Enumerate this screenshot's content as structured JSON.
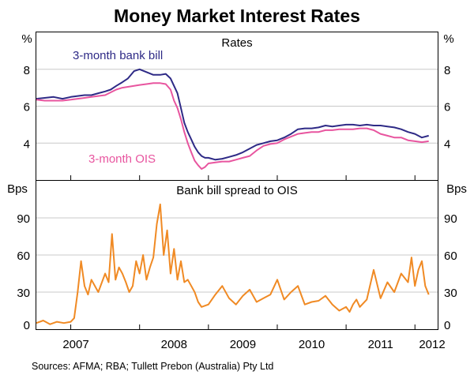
{
  "title": "Money Market Interest Rates",
  "source": "Sources: AFMA; RBA; Tullett Prebon (Australia) Pty Ltd",
  "chart_data": [
    {
      "type": "line",
      "panel_title": "Rates",
      "ylabel_left": "%",
      "ylabel_right": "%",
      "ylim": [
        2,
        10
      ],
      "yticks": [
        4,
        6,
        8
      ],
      "xlim": [
        2006.5,
        2012.33
      ],
      "xtick_labels": [
        "2007",
        "2008",
        "2009",
        "2010",
        "2011",
        "2012"
      ],
      "grid": true,
      "series": [
        {
          "name": "3-month bank bill",
          "color": "#2e2a86",
          "x": [
            2006.5,
            2006.62,
            2006.75,
            2006.88,
            2007.0,
            2007.1,
            2007.2,
            2007.3,
            2007.4,
            2007.5,
            2007.58,
            2007.66,
            2007.75,
            2007.83,
            2007.92,
            2008.0,
            2008.1,
            2008.2,
            2008.3,
            2008.38,
            2008.45,
            2008.5,
            2008.55,
            2008.6,
            2008.65,
            2008.7,
            2008.75,
            2008.8,
            2008.85,
            2008.9,
            2008.95,
            2009.0,
            2009.1,
            2009.2,
            2009.3,
            2009.4,
            2009.5,
            2009.6,
            2009.7,
            2009.8,
            2009.9,
            2010.0,
            2010.1,
            2010.2,
            2010.3,
            2010.4,
            2010.5,
            2010.6,
            2010.7,
            2010.8,
            2010.9,
            2011.0,
            2011.1,
            2011.2,
            2011.3,
            2011.4,
            2011.5,
            2011.6,
            2011.7,
            2011.8,
            2011.9,
            2012.0,
            2012.1,
            2012.2
          ],
          "values": [
            6.4,
            6.45,
            6.5,
            6.4,
            6.5,
            6.55,
            6.6,
            6.6,
            6.7,
            6.8,
            6.9,
            7.1,
            7.3,
            7.5,
            7.9,
            8.0,
            7.85,
            7.7,
            7.7,
            7.75,
            7.5,
            7.1,
            6.7,
            5.9,
            5.1,
            4.6,
            4.2,
            3.8,
            3.5,
            3.3,
            3.2,
            3.2,
            3.1,
            3.15,
            3.25,
            3.35,
            3.5,
            3.7,
            3.9,
            4.0,
            4.1,
            4.15,
            4.3,
            4.5,
            4.75,
            4.8,
            4.8,
            4.85,
            4.95,
            4.9,
            4.95,
            5.0,
            5.0,
            4.95,
            5.0,
            4.95,
            4.95,
            4.9,
            4.85,
            4.75,
            4.6,
            4.5,
            4.3,
            4.4
          ]
        },
        {
          "name": "3-month OIS",
          "color": "#e8559f",
          "x": [
            2006.5,
            2006.62,
            2006.75,
            2006.88,
            2007.0,
            2007.1,
            2007.2,
            2007.3,
            2007.4,
            2007.5,
            2007.58,
            2007.66,
            2007.75,
            2007.83,
            2007.92,
            2008.0,
            2008.1,
            2008.2,
            2008.3,
            2008.38,
            2008.45,
            2008.5,
            2008.55,
            2008.6,
            2008.65,
            2008.7,
            2008.75,
            2008.8,
            2008.85,
            2008.9,
            2008.95,
            2009.0,
            2009.1,
            2009.2,
            2009.3,
            2009.4,
            2009.5,
            2009.6,
            2009.7,
            2009.8,
            2009.9,
            2010.0,
            2010.1,
            2010.2,
            2010.3,
            2010.4,
            2010.5,
            2010.6,
            2010.7,
            2010.8,
            2010.9,
            2011.0,
            2011.1,
            2011.2,
            2011.3,
            2011.4,
            2011.5,
            2011.6,
            2011.7,
            2011.8,
            2011.9,
            2012.0,
            2012.1,
            2012.2
          ],
          "values": [
            6.35,
            6.3,
            6.3,
            6.3,
            6.35,
            6.4,
            6.45,
            6.5,
            6.55,
            6.6,
            6.75,
            6.9,
            7.0,
            7.05,
            7.1,
            7.15,
            7.2,
            7.25,
            7.25,
            7.2,
            6.9,
            6.3,
            5.9,
            5.3,
            4.6,
            4.0,
            3.5,
            3.05,
            2.8,
            2.6,
            2.7,
            2.9,
            2.95,
            3.0,
            3.0,
            3.1,
            3.2,
            3.3,
            3.6,
            3.85,
            3.95,
            4.0,
            4.2,
            4.35,
            4.5,
            4.55,
            4.6,
            4.6,
            4.7,
            4.7,
            4.75,
            4.75,
            4.75,
            4.8,
            4.8,
            4.7,
            4.5,
            4.4,
            4.3,
            4.3,
            4.15,
            4.1,
            4.05,
            4.1
          ]
        }
      ]
    },
    {
      "type": "line",
      "panel_title": "Bank bill spread to OIS",
      "ylabel_left": "Bps",
      "ylabel_right": "Bps",
      "ylim": [
        0,
        120
      ],
      "yticks": [
        0,
        30,
        60,
        90
      ],
      "xlim": [
        2006.5,
        2012.33
      ],
      "xtick_labels": [
        "2007",
        "2008",
        "2009",
        "2010",
        "2011",
        "2012"
      ],
      "grid": true,
      "series": [
        {
          "name": "Bank bill spread to OIS",
          "color": "#f08a24",
          "x": [
            2006.5,
            2006.6,
            2006.7,
            2006.8,
            2006.9,
            2007.0,
            2007.05,
            2007.1,
            2007.15,
            2007.2,
            2007.25,
            2007.3,
            2007.4,
            2007.5,
            2007.55,
            2007.6,
            2007.65,
            2007.7,
            2007.75,
            2007.8,
            2007.85,
            2007.9,
            2007.95,
            2008.0,
            2008.05,
            2008.1,
            2008.15,
            2008.2,
            2008.25,
            2008.3,
            2008.35,
            2008.4,
            2008.45,
            2008.5,
            2008.55,
            2008.6,
            2008.65,
            2008.7,
            2008.75,
            2008.8,
            2008.85,
            2008.9,
            2009.0,
            2009.1,
            2009.2,
            2009.3,
            2009.4,
            2009.5,
            2009.6,
            2009.7,
            2009.8,
            2009.9,
            2010.0,
            2010.1,
            2010.2,
            2010.3,
            2010.4,
            2010.5,
            2010.6,
            2010.7,
            2010.8,
            2010.9,
            2011.0,
            2011.05,
            2011.1,
            2011.15,
            2011.2,
            2011.3,
            2011.4,
            2011.5,
            2011.6,
            2011.7,
            2011.8,
            2011.9,
            2011.95,
            2012.0,
            2012.05,
            2012.1,
            2012.15,
            2012.2
          ],
          "values": [
            5,
            7,
            4,
            6,
            5,
            6,
            9,
            30,
            55,
            35,
            28,
            40,
            30,
            45,
            38,
            77,
            40,
            50,
            45,
            38,
            30,
            35,
            55,
            45,
            60,
            40,
            50,
            58,
            85,
            101,
            60,
            80,
            45,
            65,
            40,
            55,
            38,
            40,
            35,
            30,
            22,
            18,
            20,
            28,
            35,
            25,
            20,
            27,
            32,
            22,
            25,
            28,
            40,
            24,
            30,
            35,
            20,
            22,
            23,
            27,
            20,
            15,
            18,
            14,
            20,
            24,
            18,
            24,
            48,
            25,
            38,
            30,
            45,
            38,
            58,
            35,
            48,
            55,
            35,
            28
          ]
        }
      ]
    }
  ]
}
